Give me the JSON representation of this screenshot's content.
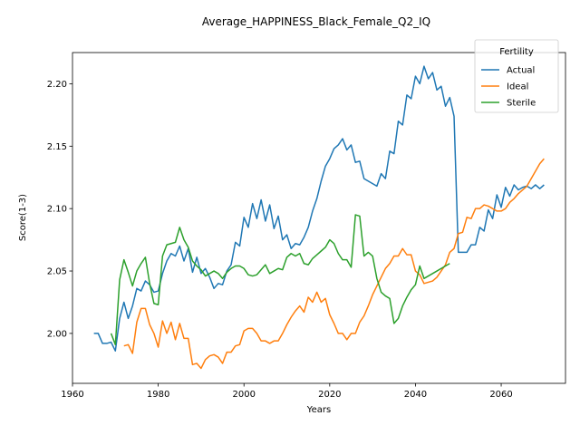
{
  "chart_data": {
    "type": "line",
    "title": "Average_HAPPINESS_Black_Female_Q2_IQ",
    "xlabel": "Years",
    "ylabel": "Score(1-3)",
    "xlim": [
      1960,
      2075
    ],
    "ylim": [
      1.96,
      2.225
    ],
    "xticks": [
      1960,
      1980,
      2000,
      2020,
      2040,
      2060
    ],
    "yticks": [
      2.0,
      2.05,
      2.1,
      2.15,
      2.2
    ],
    "grid": false,
    "legend": {
      "title": "Fertility",
      "placement": "top-right"
    },
    "series": [
      {
        "name": "Actual",
        "color": "#1f77b4",
        "points": [
          [
            1965,
            2.0
          ],
          [
            1966,
            2.0
          ],
          [
            1967,
            1.992
          ],
          [
            1968,
            1.992
          ],
          [
            1969,
            1.993
          ],
          [
            1970,
            1.986
          ],
          [
            1971,
            2.012
          ],
          [
            1972,
            2.025
          ],
          [
            1973,
            2.012
          ],
          [
            1974,
            2.022
          ],
          [
            1975,
            2.036
          ],
          [
            1976,
            2.034
          ],
          [
            1977,
            2.042
          ],
          [
            1978,
            2.039
          ],
          [
            1979,
            2.033
          ],
          [
            1980,
            2.034
          ],
          [
            1981,
            2.048
          ],
          [
            1982,
            2.058
          ],
          [
            1983,
            2.064
          ],
          [
            1984,
            2.062
          ],
          [
            1985,
            2.07
          ],
          [
            1986,
            2.058
          ],
          [
            1987,
            2.068
          ],
          [
            1988,
            2.049
          ],
          [
            1989,
            2.061
          ],
          [
            1990,
            2.048
          ],
          [
            1991,
            2.052
          ],
          [
            1992,
            2.045
          ],
          [
            1993,
            2.036
          ],
          [
            1994,
            2.04
          ],
          [
            1995,
            2.039
          ],
          [
            1996,
            2.05
          ],
          [
            1997,
            2.055
          ],
          [
            1998,
            2.073
          ],
          [
            1999,
            2.07
          ],
          [
            2000,
            2.093
          ],
          [
            2001,
            2.085
          ],
          [
            2002,
            2.104
          ],
          [
            2003,
            2.092
          ],
          [
            2004,
            2.107
          ],
          [
            2005,
            2.09
          ],
          [
            2006,
            2.103
          ],
          [
            2007,
            2.084
          ],
          [
            2008,
            2.094
          ],
          [
            2009,
            2.075
          ],
          [
            2010,
            2.079
          ],
          [
            2011,
            2.068
          ],
          [
            2012,
            2.072
          ],
          [
            2013,
            2.071
          ],
          [
            2014,
            2.077
          ],
          [
            2015,
            2.085
          ],
          [
            2016,
            2.098
          ],
          [
            2017,
            2.108
          ],
          [
            2018,
            2.122
          ],
          [
            2019,
            2.134
          ],
          [
            2020,
            2.14
          ],
          [
            2021,
            2.148
          ],
          [
            2022,
            2.151
          ],
          [
            2023,
            2.156
          ],
          [
            2024,
            2.147
          ],
          [
            2025,
            2.151
          ],
          [
            2026,
            2.137
          ],
          [
            2027,
            2.138
          ],
          [
            2028,
            2.124
          ],
          [
            2029,
            2.122
          ],
          [
            2030,
            2.12
          ],
          [
            2031,
            2.118
          ],
          [
            2032,
            2.128
          ],
          [
            2033,
            2.124
          ],
          [
            2034,
            2.146
          ],
          [
            2035,
            2.144
          ],
          [
            2036,
            2.17
          ],
          [
            2037,
            2.167
          ],
          [
            2038,
            2.191
          ],
          [
            2039,
            2.188
          ],
          [
            2040,
            2.206
          ],
          [
            2041,
            2.2
          ],
          [
            2042,
            2.214
          ],
          [
            2043,
            2.204
          ],
          [
            2044,
            2.209
          ],
          [
            2045,
            2.195
          ],
          [
            2046,
            2.198
          ],
          [
            2047,
            2.182
          ],
          [
            2048,
            2.189
          ],
          [
            2049,
            2.174
          ],
          [
            2050,
            2.065
          ],
          [
            2051,
            2.065
          ],
          [
            2052,
            2.065
          ],
          [
            2053,
            2.071
          ],
          [
            2054,
            2.071
          ],
          [
            2055,
            2.085
          ],
          [
            2056,
            2.082
          ],
          [
            2057,
            2.099
          ],
          [
            2058,
            2.092
          ],
          [
            2059,
            2.111
          ],
          [
            2060,
            2.101
          ],
          [
            2061,
            2.117
          ],
          [
            2062,
            2.11
          ],
          [
            2063,
            2.119
          ],
          [
            2064,
            2.115
          ],
          [
            2065,
            2.117
          ],
          [
            2066,
            2.118
          ],
          [
            2067,
            2.116
          ],
          [
            2068,
            2.119
          ],
          [
            2069,
            2.116
          ],
          [
            2070,
            2.119
          ]
        ]
      },
      {
        "name": "Ideal",
        "color": "#ff7f0e",
        "points": [
          [
            1972,
            1.99
          ],
          [
            1973,
            1.991
          ],
          [
            1974,
            1.984
          ],
          [
            1975,
            2.009
          ],
          [
            1976,
            2.02
          ],
          [
            1977,
            2.02
          ],
          [
            1978,
            2.007
          ],
          [
            1979,
            2.0
          ],
          [
            1980,
            1.989
          ],
          [
            1981,
            2.01
          ],
          [
            1982,
            2.0
          ],
          [
            1983,
            2.009
          ],
          [
            1984,
            1.995
          ],
          [
            1985,
            2.008
          ],
          [
            1986,
            1.996
          ],
          [
            1987,
            1.996
          ],
          [
            1988,
            1.975
          ],
          [
            1989,
            1.976
          ],
          [
            1990,
            1.972
          ],
          [
            1991,
            1.979
          ],
          [
            1992,
            1.982
          ],
          [
            1993,
            1.983
          ],
          [
            1994,
            1.981
          ],
          [
            1995,
            1.976
          ],
          [
            1996,
            1.985
          ],
          [
            1997,
            1.985
          ],
          [
            1998,
            1.99
          ],
          [
            1999,
            1.991
          ],
          [
            2000,
            2.002
          ],
          [
            2001,
            2.004
          ],
          [
            2002,
            2.004
          ],
          [
            2003,
            2.0
          ],
          [
            2004,
            1.994
          ],
          [
            2005,
            1.994
          ],
          [
            2006,
            1.992
          ],
          [
            2007,
            1.994
          ],
          [
            2008,
            1.994
          ],
          [
            2009,
            2.0
          ],
          [
            2010,
            2.007
          ],
          [
            2011,
            2.013
          ],
          [
            2012,
            2.018
          ],
          [
            2013,
            2.022
          ],
          [
            2014,
            2.017
          ],
          [
            2015,
            2.029
          ],
          [
            2016,
            2.025
          ],
          [
            2017,
            2.033
          ],
          [
            2018,
            2.025
          ],
          [
            2019,
            2.028
          ],
          [
            2020,
            2.015
          ],
          [
            2021,
            2.008
          ],
          [
            2022,
            2.0
          ],
          [
            2023,
            2.0
          ],
          [
            2024,
            1.995
          ],
          [
            2025,
            2.0
          ],
          [
            2026,
            2.0
          ],
          [
            2027,
            2.009
          ],
          [
            2028,
            2.014
          ],
          [
            2029,
            2.022
          ],
          [
            2030,
            2.031
          ],
          [
            2031,
            2.038
          ],
          [
            2032,
            2.045
          ],
          [
            2033,
            2.052
          ],
          [
            2034,
            2.056
          ],
          [
            2035,
            2.062
          ],
          [
            2036,
            2.062
          ],
          [
            2037,
            2.068
          ],
          [
            2038,
            2.063
          ],
          [
            2039,
            2.063
          ],
          [
            2040,
            2.05
          ],
          [
            2041,
            2.047
          ],
          [
            2042,
            2.04
          ],
          [
            2043,
            2.041
          ],
          [
            2044,
            2.042
          ],
          [
            2045,
            2.045
          ],
          [
            2046,
            2.05
          ],
          [
            2047,
            2.055
          ],
          [
            2048,
            2.065
          ],
          [
            2049,
            2.068
          ],
          [
            2050,
            2.08
          ],
          [
            2051,
            2.081
          ],
          [
            2052,
            2.093
          ],
          [
            2053,
            2.092
          ],
          [
            2054,
            2.1
          ],
          [
            2055,
            2.1
          ],
          [
            2056,
            2.103
          ],
          [
            2057,
            2.102
          ],
          [
            2058,
            2.1
          ],
          [
            2059,
            2.098
          ],
          [
            2060,
            2.098
          ],
          [
            2061,
            2.1
          ],
          [
            2062,
            2.105
          ],
          [
            2063,
            2.108
          ],
          [
            2064,
            2.112
          ],
          [
            2065,
            2.115
          ],
          [
            2066,
            2.118
          ],
          [
            2067,
            2.124
          ],
          [
            2068,
            2.13
          ],
          [
            2069,
            2.136
          ],
          [
            2070,
            2.14
          ]
        ]
      },
      {
        "name": "Sterile",
        "color": "#2ca02c",
        "points": [
          [
            1969,
            2.0
          ],
          [
            1970,
            1.991
          ],
          [
            1971,
            2.043
          ],
          [
            1972,
            2.059
          ],
          [
            1973,
            2.049
          ],
          [
            1974,
            2.038
          ],
          [
            1975,
            2.05
          ],
          [
            1976,
            2.056
          ],
          [
            1977,
            2.061
          ],
          [
            1978,
            2.04
          ],
          [
            1979,
            2.024
          ],
          [
            1980,
            2.023
          ],
          [
            1981,
            2.062
          ],
          [
            1982,
            2.071
          ],
          [
            1983,
            2.072
          ],
          [
            1984,
            2.073
          ],
          [
            1985,
            2.085
          ],
          [
            1986,
            2.075
          ],
          [
            1987,
            2.069
          ],
          [
            1988,
            2.058
          ],
          [
            1989,
            2.054
          ],
          [
            1990,
            2.051
          ],
          [
            1991,
            2.046
          ],
          [
            1992,
            2.048
          ],
          [
            1993,
            2.05
          ],
          [
            1994,
            2.048
          ],
          [
            1995,
            2.044
          ],
          [
            1996,
            2.049
          ],
          [
            1997,
            2.052
          ],
          [
            1998,
            2.054
          ],
          [
            1999,
            2.054
          ],
          [
            2000,
            2.052
          ],
          [
            2001,
            2.047
          ],
          [
            2002,
            2.046
          ],
          [
            2003,
            2.047
          ],
          [
            2004,
            2.051
          ],
          [
            2005,
            2.055
          ],
          [
            2006,
            2.048
          ],
          [
            2007,
            2.05
          ],
          [
            2008,
            2.052
          ],
          [
            2009,
            2.051
          ],
          [
            2010,
            2.061
          ],
          [
            2011,
            2.064
          ],
          [
            2012,
            2.062
          ],
          [
            2013,
            2.064
          ],
          [
            2014,
            2.056
          ],
          [
            2015,
            2.055
          ],
          [
            2016,
            2.06
          ],
          [
            2017,
            2.063
          ],
          [
            2018,
            2.066
          ],
          [
            2019,
            2.069
          ],
          [
            2020,
            2.075
          ],
          [
            2021,
            2.072
          ],
          [
            2022,
            2.064
          ],
          [
            2023,
            2.059
          ],
          [
            2024,
            2.059
          ],
          [
            2025,
            2.053
          ],
          [
            2026,
            2.095
          ],
          [
            2027,
            2.094
          ],
          [
            2028,
            2.062
          ],
          [
            2029,
            2.065
          ],
          [
            2030,
            2.062
          ],
          [
            2031,
            2.044
          ],
          [
            2032,
            2.033
          ],
          [
            2033,
            2.03
          ],
          [
            2034,
            2.028
          ],
          [
            2035,
            2.008
          ],
          [
            2036,
            2.012
          ],
          [
            2037,
            2.022
          ],
          [
            2038,
            2.029
          ],
          [
            2039,
            2.035
          ],
          [
            2040,
            2.039
          ],
          [
            2041,
            2.054
          ],
          [
            2042,
            2.044
          ],
          [
            2043,
            2.046
          ],
          [
            2044,
            2.048
          ],
          [
            2045,
            2.05
          ],
          [
            2046,
            2.052
          ],
          [
            2047,
            2.054
          ],
          [
            2048,
            2.056
          ]
        ]
      }
    ]
  }
}
